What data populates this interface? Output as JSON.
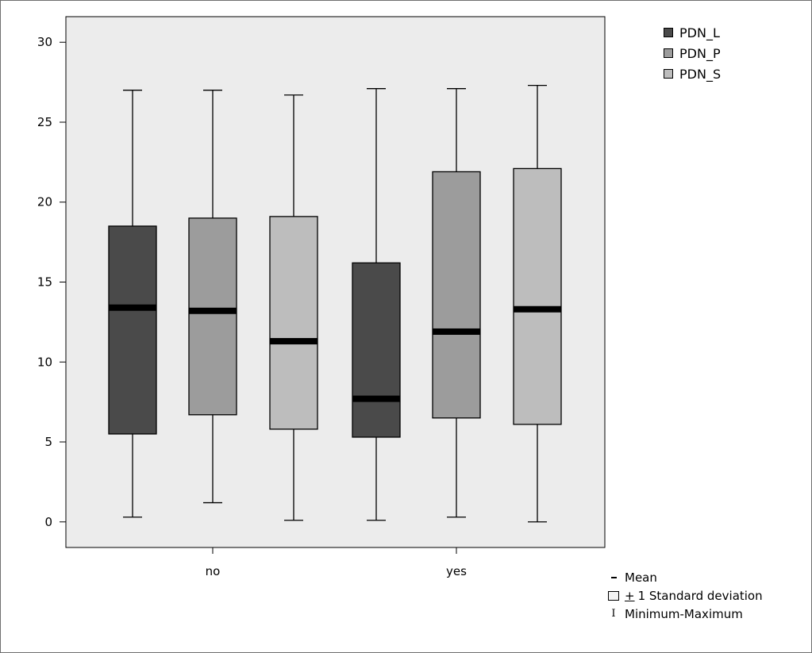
{
  "chart_data": {
    "type": "boxplot",
    "groups": [
      "no",
      "yes"
    ],
    "series": [
      {
        "name": "PDN_L",
        "color": "#4a4a4a",
        "no": {
          "min": 0.3,
          "lower": 5.5,
          "mean": 13.4,
          "upper": 18.5,
          "max": 27.0
        },
        "yes": {
          "min": 0.1,
          "lower": 5.3,
          "mean": 7.7,
          "upper": 16.2,
          "max": 27.1
        }
      },
      {
        "name": "PDN_P",
        "color": "#9c9c9c",
        "no": {
          "min": 1.2,
          "lower": 6.7,
          "mean": 13.2,
          "upper": 19.0,
          "max": 27.0
        },
        "yes": {
          "min": 0.3,
          "lower": 6.5,
          "mean": 11.9,
          "upper": 21.9,
          "max": 27.1
        }
      },
      {
        "name": "PDN_S",
        "color": "#bdbdbd",
        "no": {
          "min": 0.1,
          "lower": 5.8,
          "mean": 11.3,
          "upper": 19.1,
          "max": 26.7
        },
        "yes": {
          "min": 0.0,
          "lower": 6.1,
          "mean": 13.3,
          "upper": 22.1,
          "max": 27.3
        }
      }
    ],
    "y_ticks": [
      "0",
      "5",
      "10",
      "15",
      "20",
      "25",
      "30"
    ],
    "ylim": [
      -1.6,
      31.6
    ],
    "grid": false,
    "background": "#ececec",
    "legend_position": "top-right",
    "stat_key": {
      "mean": "Mean",
      "sd_symbol": "+",
      "sd": "1 Standard deviation",
      "range": "Minimum-Maximum"
    }
  }
}
